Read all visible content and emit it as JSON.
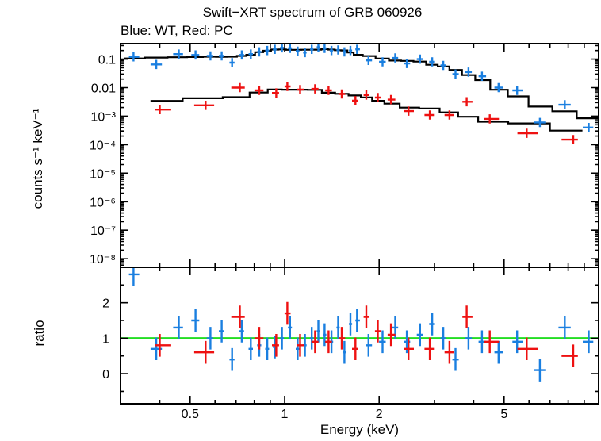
{
  "chart_data": {
    "title": "Swift−XRT spectrum of GRB 060926",
    "subtitle": "Blue: WT, Red: PC",
    "xlabel": "Energy (keV)",
    "x_scale": "log",
    "xlim": [
      0.3,
      10
    ],
    "x_ticks": [
      "0.5",
      "1",
      "2",
      "5"
    ],
    "colors": {
      "wt": "#1a7fe0",
      "pc": "#ee1111",
      "model": "#000000",
      "unity": "#22dd22"
    },
    "panels": [
      {
        "type": "scatter",
        "ylabel": "counts s⁻¹ keV⁻¹",
        "y_scale": "log",
        "ylim": [
          5e-09,
          0.35
        ],
        "y_ticks": [
          "0.1",
          "0.01",
          "10⁻³",
          "10⁻⁴",
          "10⁻⁵",
          "10⁻⁶",
          "10⁻⁷",
          "10⁻⁸"
        ],
        "series": [
          {
            "name": "WT",
            "points": [
              [
                0.33,
                0.12
              ],
              [
                0.39,
                0.065
              ],
              [
                0.46,
                0.15
              ],
              [
                0.52,
                0.14
              ],
              [
                0.58,
                0.13
              ],
              [
                0.63,
                0.13
              ],
              [
                0.68,
                0.075
              ],
              [
                0.73,
                0.14
              ],
              [
                0.78,
                0.15
              ],
              [
                0.83,
                0.18
              ],
              [
                0.88,
                0.2
              ],
              [
                0.93,
                0.22
              ],
              [
                0.98,
                0.25
              ],
              [
                1.04,
                0.24
              ],
              [
                1.1,
                0.19
              ],
              [
                1.16,
                0.17
              ],
              [
                1.22,
                0.22
              ],
              [
                1.28,
                0.26
              ],
              [
                1.34,
                0.24
              ],
              [
                1.41,
                0.2
              ],
              [
                1.48,
                0.21
              ],
              [
                1.55,
                0.18
              ],
              [
                1.62,
                0.2
              ],
              [
                1.7,
                0.22
              ],
              [
                1.85,
                0.09
              ],
              [
                2.05,
                0.08
              ],
              [
                2.25,
                0.11
              ],
              [
                2.45,
                0.07
              ],
              [
                2.7,
                0.1
              ],
              [
                2.95,
                0.08
              ],
              [
                3.2,
                0.06
              ],
              [
                3.5,
                0.03
              ],
              [
                3.85,
                0.035
              ],
              [
                4.25,
                0.025
              ],
              [
                4.8,
                0.01
              ],
              [
                5.5,
                0.008
              ],
              [
                6.5,
                0.0006
              ],
              [
                7.8,
                0.0025
              ],
              [
                9.3,
                0.0004
              ]
            ]
          },
          {
            "name": "PC",
            "points": [
              [
                0.4,
                0.0017
              ],
              [
                0.56,
                0.0024
              ],
              [
                0.72,
                0.01
              ],
              [
                0.83,
                0.008
              ],
              [
                0.94,
                0.0065
              ],
              [
                1.02,
                0.011
              ],
              [
                1.12,
                0.0085
              ],
              [
                1.25,
                0.009
              ],
              [
                1.38,
                0.008
              ],
              [
                1.52,
                0.006
              ],
              [
                1.68,
                0.0035
              ],
              [
                1.82,
                0.0055
              ],
              [
                1.98,
                0.0045
              ],
              [
                2.18,
                0.0038
              ],
              [
                2.48,
                0.0015
              ],
              [
                2.9,
                0.0011
              ],
              [
                3.35,
                0.0011
              ],
              [
                3.8,
                0.0032
              ],
              [
                4.5,
                0.0008
              ],
              [
                5.9,
                0.00025
              ],
              [
                8.3,
                0.00015
              ]
            ]
          }
        ]
      },
      {
        "type": "scatter",
        "ylabel": "ratio",
        "y_scale": "linear",
        "ylim": [
          -0.85,
          3.0
        ],
        "y_ticks": [
          "0",
          "1",
          "2"
        ],
        "reference_line": 1,
        "series": [
          {
            "name": "WT",
            "points": [
              [
                0.33,
                2.8
              ],
              [
                0.39,
                0.7
              ],
              [
                0.46,
                1.3
              ],
              [
                0.52,
                1.5
              ],
              [
                0.58,
                1.0
              ],
              [
                0.63,
                1.2
              ],
              [
                0.68,
                0.4
              ],
              [
                0.73,
                1.2
              ],
              [
                0.78,
                0.7
              ],
              [
                0.83,
                0.8
              ],
              [
                0.88,
                0.7
              ],
              [
                0.93,
                0.75
              ],
              [
                0.98,
                1.0
              ],
              [
                1.04,
                1.3
              ],
              [
                1.1,
                0.7
              ],
              [
                1.16,
                0.8
              ],
              [
                1.22,
                1.0
              ],
              [
                1.28,
                1.2
              ],
              [
                1.34,
                1.1
              ],
              [
                1.41,
                0.9
              ],
              [
                1.48,
                1.3
              ],
              [
                1.55,
                0.6
              ],
              [
                1.62,
                1.4
              ],
              [
                1.7,
                1.5
              ],
              [
                1.85,
                0.8
              ],
              [
                2.05,
                0.9
              ],
              [
                2.25,
                1.3
              ],
              [
                2.45,
                0.9
              ],
              [
                2.7,
                1.1
              ],
              [
                2.95,
                1.4
              ],
              [
                3.2,
                1.0
              ],
              [
                3.5,
                0.4
              ],
              [
                3.85,
                1.0
              ],
              [
                4.25,
                0.9
              ],
              [
                4.8,
                0.6
              ],
              [
                5.5,
                0.9
              ],
              [
                6.5,
                0.1
              ],
              [
                7.8,
                1.3
              ],
              [
                9.3,
                0.9
              ]
            ]
          },
          {
            "name": "PC",
            "points": [
              [
                0.4,
                0.8
              ],
              [
                0.56,
                0.6
              ],
              [
                0.72,
                1.6
              ],
              [
                0.83,
                1.0
              ],
              [
                0.94,
                0.8
              ],
              [
                1.02,
                1.7
              ],
              [
                1.12,
                0.8
              ],
              [
                1.25,
                0.9
              ],
              [
                1.38,
                0.9
              ],
              [
                1.52,
                1.0
              ],
              [
                1.68,
                0.7
              ],
              [
                1.82,
                1.6
              ],
              [
                1.98,
                1.2
              ],
              [
                2.18,
                1.1
              ],
              [
                2.48,
                0.7
              ],
              [
                2.9,
                0.7
              ],
              [
                3.35,
                0.6
              ],
              [
                3.8,
                1.6
              ],
              [
                4.5,
                0.9
              ],
              [
                5.9,
                0.7
              ],
              [
                8.3,
                0.5
              ]
            ]
          }
        ]
      }
    ]
  }
}
